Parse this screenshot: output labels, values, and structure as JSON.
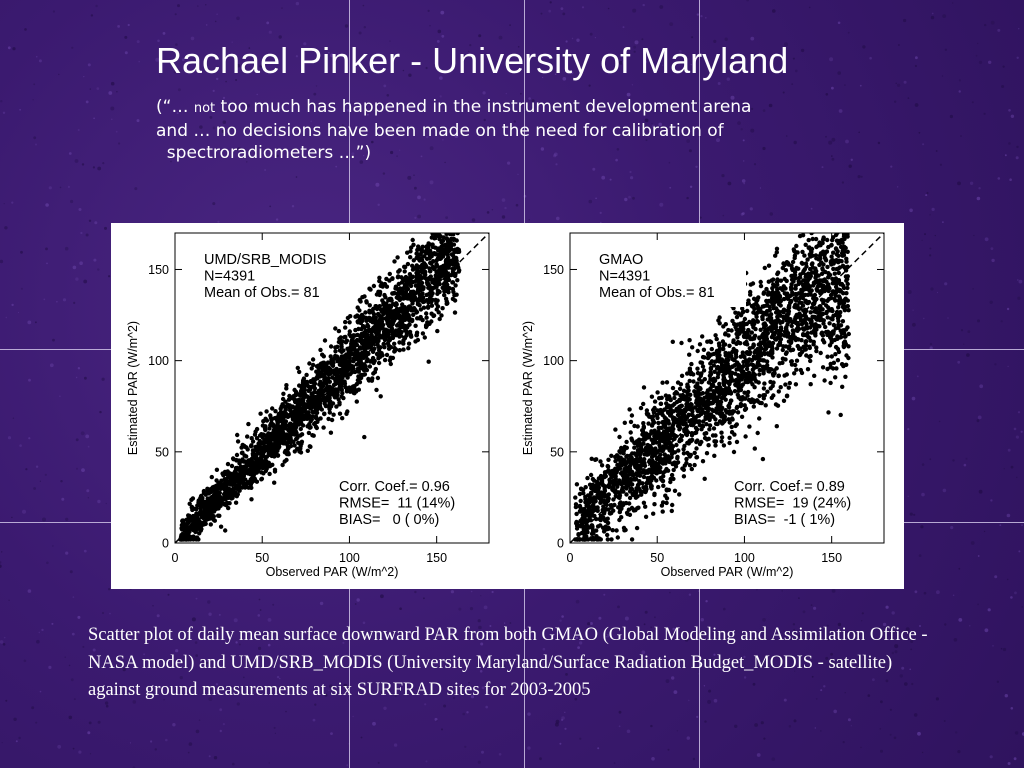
{
  "slide": {
    "title": "Rachael Pinker - University of Maryland",
    "quote_line1_a": "(“… ",
    "quote_line1_not": "not",
    "quote_line1_b": " too much has happened in the instrument development arena",
    "quote_line2": "and … no decisions have been made on the need for calibration of",
    "quote_line3": "  spectroradiometers …”)",
    "caption": "Scatter plot of daily mean surface downward PAR from both GMAO (Global Modeling and Assimilation Office - NASA model) and UMD/SRB_MODIS (University Maryland/Surface Radiation Budget_MODIS - satellite) against ground measurements at six SURFRAD sites for 2003-2005",
    "colors": {
      "background": "#3b1a70",
      "text": "#ffffff",
      "points": "#000000",
      "panel": "#ffffff"
    }
  },
  "chart_data": [
    {
      "type": "scatter",
      "title": "UMD/SRB_MODIS",
      "n_label": "N=4391",
      "mean_label": "Mean of Obs.=  81",
      "xlabel": "Observed PAR (W/m^2)",
      "ylabel": "Estimated PAR (W/m^2)",
      "xlim": [
        0,
        180
      ],
      "ylim": [
        0,
        170
      ],
      "xticks": [
        "0",
        "50",
        "100",
        "150"
      ],
      "yticks": [
        "0",
        "50",
        "100",
        "150"
      ],
      "reference_line": "1:1 dashed",
      "stats": [
        "Corr. Coef.= 0.96",
        "RMSE=  11 (14%)",
        "BIAS=   0 ( 0%)"
      ],
      "n": 4391,
      "mean_obs": 81,
      "corr": 0.96,
      "rmse": 11,
      "rmse_pct": 14,
      "bias": 0,
      "bias_pct": 0
    },
    {
      "type": "scatter",
      "title": "GMAO",
      "n_label": "N=4391",
      "mean_label": "Mean of Obs.=  81",
      "xlabel": "Observed PAR (W/m^2)",
      "ylabel": "Estimated PAR (W/m^2)",
      "xlim": [
        0,
        180
      ],
      "ylim": [
        0,
        170
      ],
      "xticks": [
        "0",
        "50",
        "100",
        "150"
      ],
      "yticks": [
        "0",
        "50",
        "100",
        "150"
      ],
      "reference_line": "1:1 dashed",
      "stats": [
        "Corr. Coef.= 0.89",
        "RMSE=  19 (24%)",
        "BIAS=  -1 ( 1%)"
      ],
      "n": 4391,
      "mean_obs": 81,
      "corr": 0.89,
      "rmse": 19,
      "rmse_pct": 24,
      "bias": -1,
      "bias_pct": 1
    }
  ]
}
